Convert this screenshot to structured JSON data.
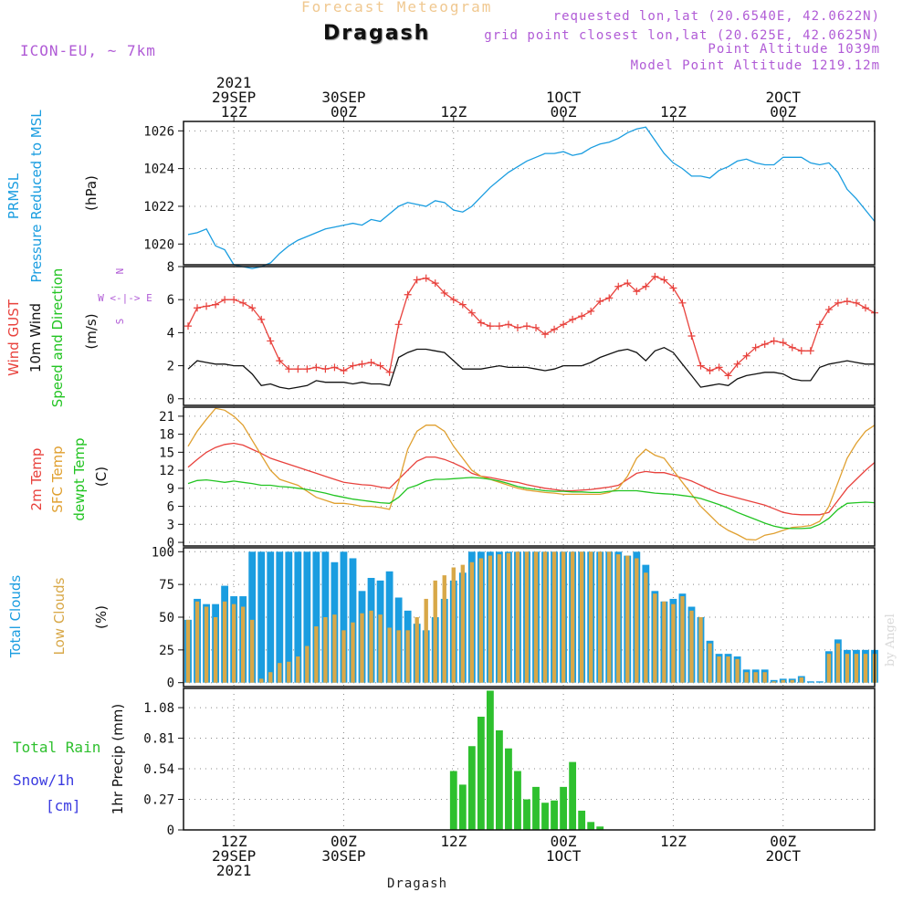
{
  "header": {
    "forecast_title": "Forecast Meteogram",
    "station": "Dragash",
    "model": "ICON-EU, ~ 7km",
    "requested_lonlat": "requested lon,lat (20.6540E, 42.0622N)",
    "grid_lonlat": "grid point closest lon,lat (20.625E, 42.0625N)",
    "point_altitude": "Point Altitude 1039m",
    "model_point_altitude": "Model Point Altitude 1219.12m"
  },
  "byline": "by Angel",
  "footer_station": "Dragash",
  "colors": {
    "pressure": "#1a9de0",
    "gust": "#e8413c",
    "wind10m": "#111111",
    "t2m": "#e8413c",
    "tsfc": "#e0a030",
    "dewpt": "#22c422",
    "total_clouds": "#1a9de0",
    "low_clouds": "#d8a848",
    "rain": "#2ec02e",
    "snow_label": "#3a3ae0",
    "direction": "#b05bd6",
    "grid": "#888888"
  },
  "chart_data": {
    "time_axis": {
      "top_labels": [
        {
          "t": 12,
          "lines": [
            "2021",
            "29SEP",
            "12Z"
          ]
        },
        {
          "t": 24,
          "lines": [
            "30SEP",
            "00Z"
          ]
        },
        {
          "t": 36,
          "lines": [
            "12Z"
          ]
        },
        {
          "t": 48,
          "lines": [
            "1OCT",
            "00Z"
          ]
        },
        {
          "t": 60,
          "lines": [
            "12Z"
          ]
        },
        {
          "t": 72,
          "lines": [
            "2OCT",
            "00Z"
          ]
        }
      ],
      "bottom_labels": [
        {
          "t": 12,
          "lines": [
            "12Z",
            "29SEP",
            "2021"
          ]
        },
        {
          "t": 24,
          "lines": [
            "00Z",
            "30SEP"
          ]
        },
        {
          "t": 36,
          "lines": [
            "12Z"
          ]
        },
        {
          "t": 48,
          "lines": [
            "00Z",
            "1OCT"
          ]
        },
        {
          "t": 60,
          "lines": [
            "12Z"
          ]
        },
        {
          "t": 72,
          "lines": [
            "00Z",
            "2OCT"
          ]
        }
      ],
      "range_hours": [
        6.5,
        82
      ]
    },
    "pressure": {
      "type": "line",
      "ylabel_lines": [
        "PRMSL",
        "Pressure Reduced to MSL"
      ],
      "unit": "(hPa)",
      "yticks": [
        1020,
        1022,
        1024,
        1026
      ],
      "ylim": [
        1018.9,
        1026.5
      ],
      "x": [
        7,
        8,
        9,
        10,
        11,
        12,
        13,
        14,
        15,
        16,
        17,
        18,
        19,
        20,
        21,
        22,
        23,
        24,
        25,
        26,
        27,
        28,
        29,
        30,
        31,
        32,
        33,
        34,
        35,
        36,
        37,
        38,
        39,
        40,
        41,
        42,
        43,
        44,
        45,
        46,
        47,
        48,
        49,
        50,
        51,
        52,
        53,
        54,
        55,
        56,
        57,
        58,
        59,
        60,
        61,
        62,
        63,
        64,
        65,
        66,
        67,
        68,
        69,
        70,
        71,
        72,
        73,
        74,
        75,
        76,
        77,
        78,
        79,
        80,
        81,
        82
      ],
      "values": [
        1020.5,
        1020.6,
        1020.8,
        1019.9,
        1019.7,
        1018.9,
        1018.8,
        1018.7,
        1018.8,
        1019.0,
        1019.5,
        1019.9,
        1020.2,
        1020.4,
        1020.6,
        1020.8,
        1020.9,
        1021.0,
        1021.1,
        1021.0,
        1021.3,
        1021.2,
        1021.6,
        1022.0,
        1022.2,
        1022.1,
        1022.0,
        1022.3,
        1022.2,
        1021.8,
        1021.7,
        1022.0,
        1022.5,
        1023.0,
        1023.4,
        1023.8,
        1024.1,
        1024.4,
        1024.6,
        1024.8,
        1024.8,
        1024.9,
        1024.7,
        1024.8,
        1025.1,
        1025.3,
        1025.4,
        1025.6,
        1025.9,
        1026.1,
        1026.2,
        1025.5,
        1024.8,
        1024.3,
        1024.0,
        1023.6,
        1023.6,
        1023.5,
        1023.9,
        1024.1,
        1024.4,
        1024.5,
        1024.3,
        1024.2,
        1024.2,
        1024.6,
        1024.6,
        1024.6,
        1024.3,
        1024.2,
        1024.3,
        1023.8,
        1022.9,
        1022.4,
        1021.8,
        1021.2
      ]
    },
    "wind": {
      "type": "line",
      "ylabel_lines": [
        "Wind GUST",
        "10m Wind",
        "Speed and Direction"
      ],
      "unit": "(m/s)",
      "direction_legend": [
        "N",
        "W <-|-> E",
        "S"
      ],
      "yticks": [
        0,
        2,
        4,
        6,
        8
      ],
      "ylim": [
        -0.4,
        8
      ],
      "x": [
        7,
        8,
        9,
        10,
        11,
        12,
        13,
        14,
        15,
        16,
        17,
        18,
        19,
        20,
        21,
        22,
        23,
        24,
        25,
        26,
        27,
        28,
        29,
        30,
        31,
        32,
        33,
        34,
        35,
        36,
        37,
        38,
        39,
        40,
        41,
        42,
        43,
        44,
        45,
        46,
        47,
        48,
        49,
        50,
        51,
        52,
        53,
        54,
        55,
        56,
        57,
        58,
        59,
        60,
        61,
        62,
        63,
        64,
        65,
        66,
        67,
        68,
        69,
        70,
        71,
        72,
        73,
        74,
        75,
        76,
        77,
        78,
        79,
        80,
        81,
        82
      ],
      "gust": [
        4.4,
        5.5,
        5.6,
        5.7,
        6.0,
        6.0,
        5.8,
        5.5,
        4.8,
        3.5,
        2.3,
        1.8,
        1.8,
        1.8,
        1.9,
        1.8,
        1.9,
        1.7,
        2.0,
        2.1,
        2.2,
        2.0,
        1.6,
        4.5,
        6.3,
        7.2,
        7.3,
        7.0,
        6.4,
        6.0,
        5.7,
        5.2,
        4.6,
        4.4,
        4.4,
        4.5,
        4.3,
        4.4,
        4.3,
        3.9,
        4.2,
        4.5,
        4.8,
        5.0,
        5.3,
        5.9,
        6.1,
        6.8,
        7.0,
        6.5,
        6.8,
        7.4,
        7.2,
        6.7,
        5.8,
        3.8,
        2.0,
        1.7,
        1.9,
        1.4,
        2.1,
        2.6,
        3.1,
        3.3,
        3.5,
        3.4,
        3.1,
        2.9,
        2.9,
        4.5,
        5.4,
        5.8,
        5.9,
        5.8,
        5.5,
        5.2
      ],
      "wind10m": [
        1.8,
        2.3,
        2.2,
        2.1,
        2.1,
        2.0,
        2.0,
        1.5,
        0.8,
        0.9,
        0.7,
        0.6,
        0.7,
        0.8,
        1.1,
        1.0,
        1.0,
        1.0,
        0.9,
        1.0,
        0.9,
        0.9,
        0.8,
        2.5,
        2.8,
        3.0,
        3.0,
        2.9,
        2.8,
        2.3,
        1.8,
        1.8,
        1.8,
        1.9,
        2.0,
        1.9,
        1.9,
        1.9,
        1.8,
        1.7,
        1.8,
        2.0,
        2.0,
        2.0,
        2.2,
        2.5,
        2.7,
        2.9,
        3.0,
        2.8,
        2.3,
        2.9,
        3.1,
        2.8,
        2.1,
        1.4,
        0.7,
        0.8,
        0.9,
        0.8,
        1.2,
        1.4,
        1.5,
        1.6,
        1.6,
        1.5,
        1.2,
        1.1,
        1.1,
        1.9,
        2.1,
        2.2,
        2.3,
        2.2,
        2.1,
        2.1
      ]
    },
    "temperature": {
      "type": "line",
      "ylabel_lines": [
        "2m Temp",
        "SFC Temp",
        "dewpt Temp"
      ],
      "unit": "(C)",
      "yticks": [
        0,
        3,
        6,
        9,
        12,
        15,
        18,
        21
      ],
      "ylim": [
        -0.6,
        22.5
      ],
      "x": [
        7,
        8,
        9,
        10,
        11,
        12,
        13,
        14,
        15,
        16,
        17,
        18,
        19,
        20,
        21,
        22,
        23,
        24,
        25,
        26,
        27,
        28,
        29,
        30,
        31,
        32,
        33,
        34,
        35,
        36,
        37,
        38,
        39,
        40,
        41,
        42,
        43,
        44,
        45,
        46,
        47,
        48,
        49,
        50,
        51,
        52,
        53,
        54,
        55,
        56,
        57,
        58,
        59,
        60,
        61,
        62,
        63,
        64,
        65,
        66,
        67,
        68,
        69,
        70,
        71,
        72,
        73,
        74,
        75,
        76,
        77,
        78,
        79,
        80,
        81,
        82
      ],
      "t2m": [
        12.5,
        13.8,
        15.0,
        15.8,
        16.3,
        16.5,
        16.2,
        15.5,
        14.8,
        14.0,
        13.5,
        13.0,
        12.5,
        12.0,
        11.5,
        11.0,
        10.5,
        10.0,
        9.8,
        9.6,
        9.5,
        9.2,
        9.0,
        10.5,
        12.0,
        13.5,
        14.2,
        14.2,
        13.8,
        13.2,
        12.5,
        11.5,
        11.0,
        10.8,
        10.5,
        10.2,
        10.0,
        9.6,
        9.3,
        9.0,
        8.8,
        8.6,
        8.6,
        8.7,
        8.8,
        9.0,
        9.2,
        9.5,
        10.5,
        11.5,
        11.8,
        11.6,
        11.6,
        11.2,
        10.7,
        10.2,
        9.5,
        8.8,
        8.2,
        7.8,
        7.4,
        7.0,
        6.6,
        6.2,
        5.6,
        5.0,
        4.7,
        4.6,
        4.6,
        4.6,
        5.0,
        7.0,
        9.0,
        10.5,
        12.0,
        13.3
      ],
      "tsfc": [
        16.0,
        18.5,
        20.5,
        22.3,
        22.0,
        21.0,
        19.5,
        17.0,
        14.5,
        12.0,
        10.5,
        10.0,
        9.5,
        8.5,
        7.5,
        7.0,
        6.5,
        6.5,
        6.3,
        6.0,
        6.0,
        5.8,
        5.5,
        10.0,
        15.5,
        18.5,
        19.5,
        19.5,
        18.5,
        16.0,
        14.0,
        12.0,
        11.0,
        10.5,
        10.0,
        9.5,
        9.0,
        8.7,
        8.5,
        8.3,
        8.2,
        8.0,
        8.0,
        8.0,
        8.0,
        8.0,
        8.3,
        9.0,
        11.0,
        14.0,
        15.5,
        14.5,
        14.0,
        12.0,
        10.0,
        8.0,
        6.0,
        4.5,
        3.0,
        2.0,
        1.3,
        0.5,
        0.4,
        1.2,
        1.5,
        2.0,
        2.5,
        2.6,
        2.8,
        3.5,
        6.0,
        10.0,
        14.0,
        16.5,
        18.5,
        19.5
      ],
      "dewpt": [
        9.8,
        10.3,
        10.4,
        10.2,
        10.0,
        10.2,
        10.0,
        9.8,
        9.5,
        9.5,
        9.3,
        9.2,
        9.0,
        8.8,
        8.5,
        8.2,
        7.8,
        7.5,
        7.2,
        7.0,
        6.8,
        6.6,
        6.5,
        7.5,
        9.0,
        9.5,
        10.2,
        10.5,
        10.5,
        10.6,
        10.7,
        10.8,
        10.7,
        10.5,
        10.2,
        9.8,
        9.3,
        9.0,
        8.8,
        8.6,
        8.5,
        8.5,
        8.4,
        8.4,
        8.3,
        8.3,
        8.5,
        8.6,
        8.6,
        8.6,
        8.4,
        8.2,
        8.1,
        8.0,
        7.8,
        7.6,
        7.3,
        6.8,
        6.3,
        5.7,
        5.0,
        4.4,
        3.8,
        3.2,
        2.7,
        2.4,
        2.3,
        2.3,
        2.4,
        3.0,
        4.0,
        5.5,
        6.5,
        6.6,
        6.7,
        6.6
      ]
    },
    "clouds": {
      "type": "bar",
      "ylabel_lines": [
        "Total Clouds",
        "Low Clouds"
      ],
      "unit": "(%)",
      "yticks": [
        0,
        25,
        50,
        75,
        100
      ],
      "ylim": [
        -3,
        103
      ],
      "x": [
        7,
        8,
        9,
        10,
        11,
        12,
        13,
        14,
        15,
        16,
        17,
        18,
        19,
        20,
        21,
        22,
        23,
        24,
        25,
        26,
        27,
        28,
        29,
        30,
        31,
        32,
        33,
        34,
        35,
        36,
        37,
        38,
        39,
        40,
        41,
        42,
        43,
        44,
        45,
        46,
        47,
        48,
        49,
        50,
        51,
        52,
        53,
        54,
        55,
        56,
        57,
        58,
        59,
        60,
        61,
        62,
        63,
        64,
        65,
        66,
        67,
        68,
        69,
        70,
        71,
        72,
        73,
        74,
        75,
        76,
        77,
        78,
        79,
        80,
        81,
        82
      ],
      "total": [
        48,
        64,
        60,
        60,
        74,
        66,
        66,
        100,
        100,
        100,
        100,
        100,
        100,
        100,
        100,
        100,
        92,
        100,
        95,
        70,
        80,
        78,
        85,
        65,
        55,
        45,
        40,
        50,
        64,
        78,
        84,
        100,
        100,
        100,
        100,
        100,
        100,
        100,
        100,
        100,
        100,
        100,
        100,
        100,
        100,
        100,
        100,
        100,
        97,
        100,
        90,
        70,
        62,
        64,
        68,
        58,
        50,
        32,
        22,
        22,
        20,
        10,
        10,
        10,
        2,
        3,
        3,
        5,
        1,
        1,
        24,
        33,
        25,
        25,
        25,
        25
      ],
      "low": [
        48,
        62,
        58,
        50,
        62,
        60,
        58,
        48,
        3,
        8,
        15,
        16,
        20,
        28,
        43,
        50,
        52,
        40,
        46,
        53,
        55,
        52,
        42,
        40,
        40,
        50,
        64,
        78,
        82,
        88,
        90,
        92,
        95,
        97,
        98,
        99,
        100,
        100,
        100,
        100,
        100,
        100,
        100,
        100,
        100,
        100,
        100,
        98,
        97,
        95,
        84,
        68,
        62,
        60,
        66,
        55,
        50,
        30,
        20,
        20,
        18,
        8,
        8,
        8,
        1,
        2,
        2,
        4,
        0,
        0,
        22,
        30,
        22,
        22,
        22,
        22
      ]
    },
    "precip": {
      "type": "bar",
      "ylabel": "1hr Precip (mm)",
      "legend_total": "Total  Rain",
      "legend_snow": "Snow/1h",
      "legend_snow_unit": "[cm]",
      "yticks": [
        0,
        0.27,
        0.54,
        0.81,
        1.08
      ],
      "ylim": [
        0,
        1.25
      ],
      "x": [
        36,
        37,
        38,
        39,
        40,
        41,
        42,
        43,
        44,
        45,
        46,
        47,
        48,
        49,
        50,
        51,
        52
      ],
      "values": [
        0.52,
        0.4,
        0.74,
        1.0,
        1.23,
        0.88,
        0.72,
        0.52,
        0.27,
        0.38,
        0.24,
        0.26,
        0.38,
        0.6,
        0.17,
        0.07,
        0.03
      ]
    }
  }
}
